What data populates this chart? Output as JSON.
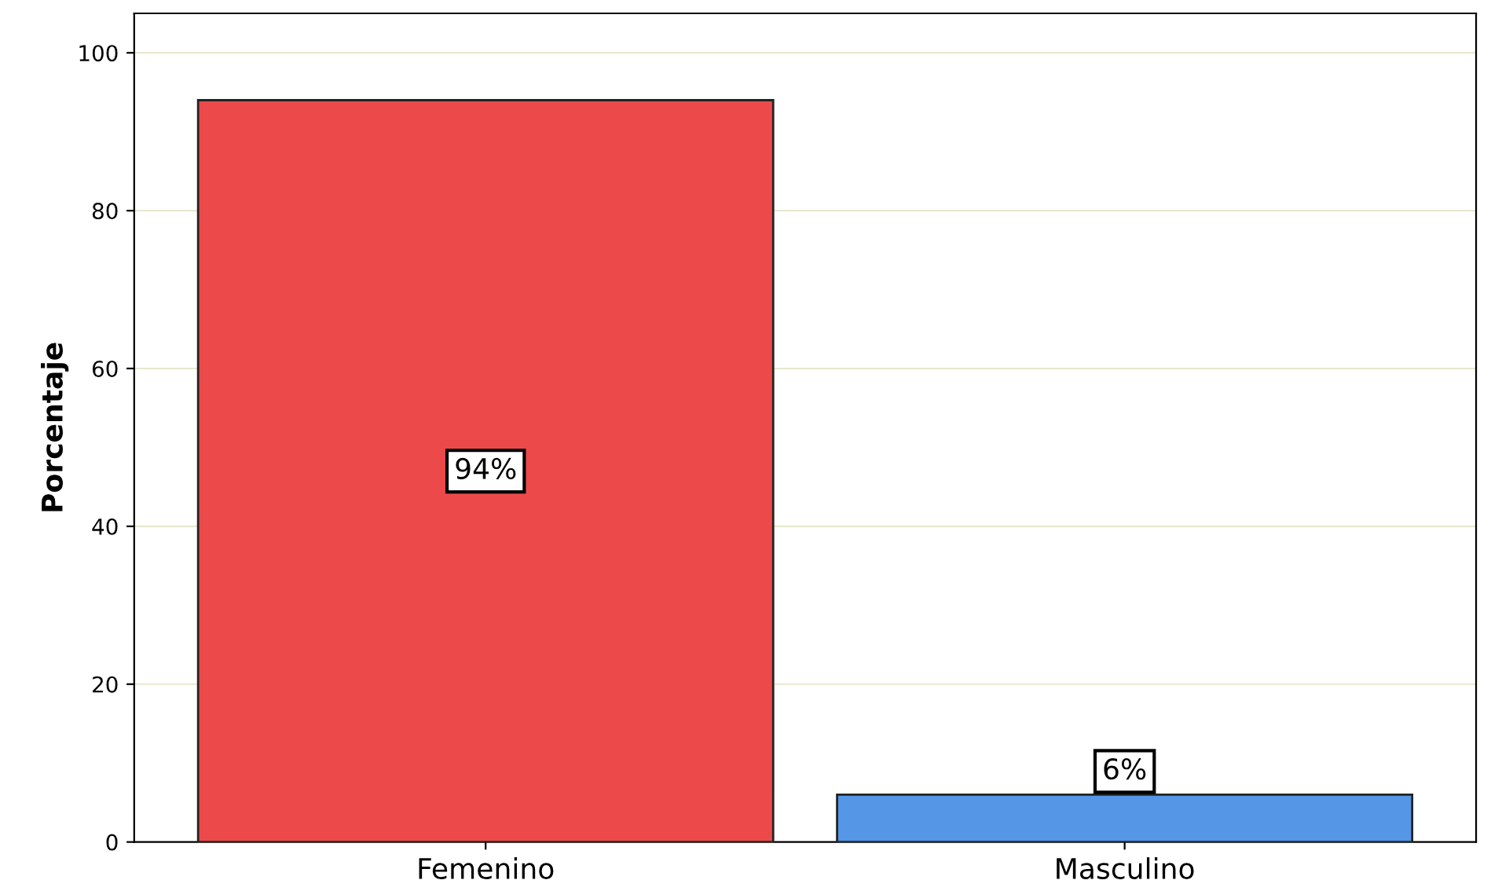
{
  "chart_data": {
    "type": "bar",
    "ylabel": "Porcentaje",
    "categories": [
      "Femenino",
      "Masculino"
    ],
    "values": [
      94,
      6
    ],
    "colors": [
      "#ec4a4a",
      "#5596e6"
    ],
    "value_labels": [
      "94%",
      "6%"
    ],
    "ylim": [
      0,
      105
    ],
    "yticks": [
      0,
      20,
      40,
      60,
      80,
      100
    ],
    "grid": "y"
  }
}
